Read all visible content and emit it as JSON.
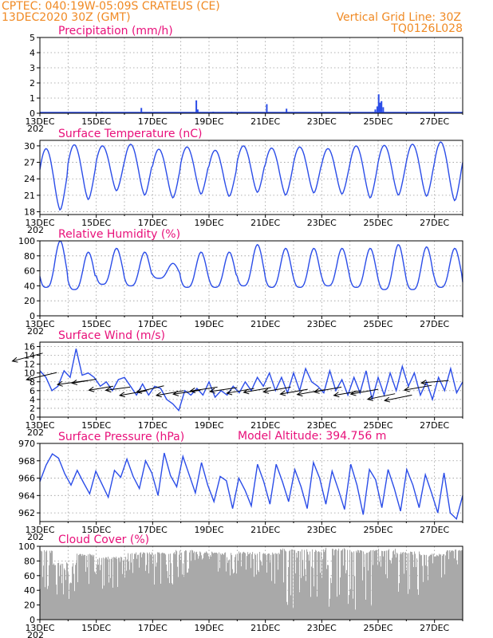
{
  "header": {
    "line1_left": "CPTEC:   040:19W-05:09S   CRATEUS (CE)",
    "line2_left": "13DEC2020 30Z (GMT)",
    "line1_right": "Vertical Grid Line: 30Z",
    "line2_right": "TQ0126L028",
    "altitude": "Model Altitude: 394.756  m"
  },
  "colors": {
    "header": "#f08a24",
    "title": "#e8107a",
    "line": "#2b4de8",
    "cloud": "#a9a9a9",
    "grid": "#999999"
  },
  "x_tick_labels": [
    "13DEC",
    "15DEC",
    "17DEC",
    "19DEC",
    "21DEC",
    "23DEC",
    "25DEC",
    "27DEC"
  ],
  "year_stub": "202",
  "chart_data": [
    {
      "type": "bar",
      "title": "Precipitation (mm/h)",
      "ylim": [
        0,
        5
      ],
      "yticks": [
        0,
        1,
        2,
        3,
        4,
        5
      ],
      "x_range_days": [
        0,
        15
      ],
      "bars": [
        [
          2.2,
          0.1
        ],
        [
          3.6,
          0.35
        ],
        [
          5.55,
          0.85
        ],
        [
          5.6,
          0.25
        ],
        [
          6.15,
          0.1
        ],
        [
          6.8,
          0.1
        ],
        [
          8.05,
          0.6
        ],
        [
          8.75,
          0.3
        ],
        [
          11.9,
          0.25
        ],
        [
          11.97,
          0.45
        ],
        [
          12.02,
          1.25
        ],
        [
          12.07,
          0.7
        ],
        [
          12.12,
          0.8
        ],
        [
          12.18,
          0.4
        ]
      ]
    },
    {
      "type": "line",
      "title": "Surface Temperature (nC)",
      "ylim": [
        17.5,
        31
      ],
      "yticks": [
        18,
        21,
        24,
        27,
        30
      ],
      "amp_mean": 25,
      "amp_half": 5,
      "phase_days": 0.55,
      "period_days": 1,
      "series": [
        {
          "name": "",
          "points": [
            [
              0,
              26.5
            ],
            [
              0.3,
              20.2
            ],
            [
              0.45,
              18.3
            ],
            [
              0.55,
              22
            ],
            [
              0.8,
              29.5
            ],
            [
              1.0,
              28.5
            ],
            [
              1.3,
              22
            ],
            [
              1.45,
              20.2
            ],
            [
              1.8,
              30.2
            ],
            [
              2.0,
              28
            ]
          ]
        }
      ],
      "daily_max": [
        29.5,
        30.2,
        30.0,
        30.3,
        29.4,
        29.8,
        29.2,
        30.0,
        29.6,
        29.8,
        29.5,
        30.0,
        30.1,
        30.3,
        30.7
      ],
      "daily_min": [
        18.3,
        20.2,
        21.8,
        21.0,
        20.5,
        21.2,
        20.8,
        21.5,
        21.0,
        21.4,
        21.2,
        20.5,
        21.0,
        20.8,
        20.0
      ],
      "end_value": 27.0
    },
    {
      "type": "line",
      "title": "Relative Humidity (%)",
      "ylim": [
        0,
        100
      ],
      "yticks": [
        0,
        20,
        40,
        60,
        80,
        100
      ],
      "daily_max": [
        100,
        85,
        90,
        85,
        70,
        85,
        85,
        95,
        90,
        90,
        90,
        90,
        95,
        92,
        90
      ],
      "daily_min": [
        38,
        35,
        42,
        40,
        50,
        38,
        38,
        40,
        38,
        38,
        40,
        38,
        35,
        35,
        38
      ],
      "end_value": 45
    },
    {
      "type": "line",
      "title": "Surface Wind (m/s)",
      "ylim": [
        0,
        17
      ],
      "yticks": [
        0,
        2,
        4,
        6,
        8,
        10,
        12,
        14,
        16
      ],
      "values": [
        10.5,
        9,
        6,
        7,
        10.5,
        9,
        15.5,
        9.5,
        10,
        9,
        7,
        8,
        6,
        8.5,
        9,
        7,
        5,
        7.5,
        5,
        7,
        6.5,
        4,
        3,
        1.5,
        6,
        5,
        6.5,
        5,
        8,
        4.5,
        6,
        5,
        7,
        5.5,
        8,
        6,
        9,
        7,
        10,
        6,
        9,
        5.5,
        10,
        6,
        11,
        8,
        7,
        5.5,
        10.5,
        6,
        8.5,
        5,
        9,
        5.5,
        10.5,
        4,
        9,
        5,
        10,
        6,
        11.5,
        7,
        10,
        5,
        8,
        4,
        9,
        6,
        11,
        5.5,
        8
      ],
      "vectors": [
        [
          0.1,
          14.5,
          -1.0,
          1.0
        ],
        [
          0.6,
          10.1,
          -1.0,
          0.9
        ],
        [
          1.7,
          8.3,
          -1.0,
          0.5
        ],
        [
          2.0,
          8.6,
          -0.8,
          0.5
        ],
        [
          2.6,
          7.0,
          -0.8,
          0.5
        ],
        [
          3.2,
          6.8,
          -0.8,
          0.4
        ],
        [
          3.8,
          6.0,
          -0.9,
          0.6
        ],
        [
          4.4,
          7.1,
          -0.9,
          0.8
        ],
        [
          5.1,
          6.0,
          -0.9,
          0.6
        ],
        [
          5.7,
          6.1,
          -0.9,
          0.5
        ],
        [
          6.3,
          6.8,
          -0.9,
          0.5
        ],
        [
          7.0,
          6.7,
          -0.9,
          0.5
        ],
        [
          7.6,
          6.5,
          -0.9,
          0.6
        ],
        [
          8.2,
          6.7,
          -0.9,
          0.6
        ],
        [
          8.9,
          6.8,
          -0.9,
          0.6
        ],
        [
          9.5,
          6.3,
          -0.9,
          0.6
        ],
        [
          10.1,
          6.2,
          -0.9,
          0.6
        ],
        [
          10.7,
          6.8,
          -0.9,
          0.6
        ],
        [
          11.4,
          6.0,
          -0.9,
          0.6
        ],
        [
          12.0,
          6.3,
          -0.9,
          0.6
        ],
        [
          12.6,
          5.3,
          -0.9,
          0.7
        ],
        [
          13.2,
          5.0,
          -0.9,
          0.7
        ],
        [
          13.9,
          7.2,
          -0.9,
          0.6
        ],
        [
          14.5,
          8.3,
          -0.9,
          0.3
        ]
      ]
    },
    {
      "type": "line",
      "title": "Surface Pressure (hPa)",
      "ylim": [
        961,
        970
      ],
      "yticks": [
        962,
        964,
        966,
        968,
        970
      ],
      "values": [
        965.6,
        967.5,
        968.8,
        968.3,
        966.5,
        965.2,
        966.9,
        965.5,
        964.2,
        966.8,
        965.3,
        963.8,
        966.9,
        966.1,
        968.2,
        966.2,
        964.8,
        968.0,
        966.6,
        964.0,
        968.9,
        966.3,
        965.0,
        968.5,
        966.4,
        964.3,
        967.8,
        965.2,
        963.3,
        966.2,
        965.7,
        962.5,
        966.0,
        964.6,
        962.8,
        967.6,
        965.6,
        963.0,
        967.6,
        965.6,
        963.3,
        967.0,
        965.0,
        962.5,
        967.8,
        966.0,
        963.0,
        966.8,
        964.7,
        962.4,
        967.6,
        965.2,
        961.8,
        967.0,
        965.8,
        962.6,
        967.0,
        964.8,
        962.2,
        967.0,
        965.2,
        962.6,
        966.4,
        964.3,
        962.0,
        966.6,
        962.0,
        961.3,
        964.0
      ]
    },
    {
      "type": "area",
      "title": "Cloud Cover (%)",
      "ylim": [
        0,
        100
      ],
      "yticks": [
        0,
        20,
        40,
        60,
        80,
        100
      ],
      "segments": [
        [
          0,
          0.45,
          95,
          35
        ],
        [
          0.45,
          1.3,
          78,
          28
        ],
        [
          1.3,
          2.0,
          90,
          45
        ],
        [
          2.0,
          3.1,
          86,
          40
        ],
        [
          3.1,
          4.0,
          92,
          60
        ],
        [
          4.0,
          4.8,
          92,
          45
        ],
        [
          4.8,
          5.45,
          95,
          55
        ],
        [
          5.45,
          6.1,
          93,
          80
        ],
        [
          6.1,
          7.0,
          92,
          60
        ],
        [
          7.0,
          8.0,
          93,
          55
        ],
        [
          8.0,
          8.5,
          92,
          45
        ],
        [
          8.5,
          9.0,
          97,
          15
        ],
        [
          9.0,
          10.1,
          96,
          30
        ],
        [
          10.1,
          11.0,
          98,
          10
        ],
        [
          11.0,
          11.8,
          95,
          8
        ],
        [
          11.8,
          12.6,
          97,
          55
        ],
        [
          12.6,
          13.5,
          93,
          30
        ],
        [
          13.5,
          14.4,
          90,
          35
        ],
        [
          14.4,
          15.0,
          96,
          40
        ]
      ]
    }
  ]
}
